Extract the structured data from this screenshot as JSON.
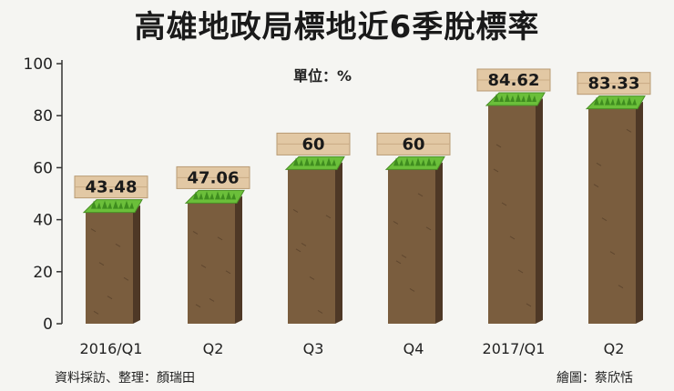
{
  "header": {
    "title": "高雄地政局標地近6季脫標率",
    "unit": "單位：%"
  },
  "footer": {
    "source": "資料採訪、整理：顏瑞田",
    "credit": "繪圖：蔡欣恬"
  },
  "colors": {
    "bar_front": "#7a5d3e",
    "bar_side": "#4e3826",
    "grass": "#6bbf3a",
    "plank": "#e2c8a4",
    "axis": "#333333"
  },
  "chart_data": {
    "type": "bar",
    "title": "高雄地政局標地近6季脫標率",
    "xlabel": "",
    "ylabel": "單位：%",
    "categories": [
      "2016/Q1",
      "Q2",
      "Q3",
      "Q4",
      "2017/Q1",
      "Q2"
    ],
    "values": [
      43.48,
      47.06,
      60,
      60,
      84.62,
      83.33
    ],
    "value_labels": [
      "43.48",
      "47.06",
      "60",
      "60",
      "84.62",
      "83.33"
    ],
    "yticks": [
      "0",
      "20",
      "40",
      "60",
      "80",
      "100"
    ],
    "ylim": [
      0,
      100
    ],
    "grid": false,
    "legend": "none"
  }
}
